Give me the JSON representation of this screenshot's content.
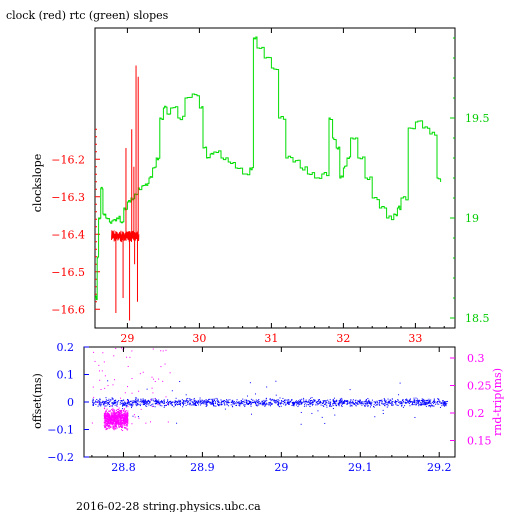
{
  "chart_data": [
    {
      "type": "line",
      "title": "clock (red) rtc (green) slopes",
      "xlabel": "",
      "ylabel": "clockslope",
      "y2label": "",
      "xlim": [
        28.55,
        33.55
      ],
      "ylim": [
        -16.65,
        -15.85
      ],
      "y2lim": [
        18.45,
        19.95
      ],
      "x_ticks": [
        29,
        30,
        31,
        32,
        33
      ],
      "y_ticks": [
        -16.6,
        -16.5,
        -16.4,
        -16.3,
        -16.2
      ],
      "y2_ticks": [
        18.5,
        19,
        19.5
      ],
      "series": [
        {
          "name": "clock",
          "axis": "left",
          "color": "#ff0000",
          "x": [
            28.78,
            28.8,
            28.82,
            28.84,
            28.86,
            28.88,
            28.9,
            28.92,
            28.94,
            28.96,
            28.98,
            29.0,
            29.02,
            29.04,
            29.06,
            29.08,
            29.1,
            29.12,
            29.14,
            29.16
          ],
          "y": [
            -16.41,
            -16.39,
            -16.42,
            -16.4,
            -16.38,
            -16.41,
            -16.43,
            -16.39,
            -16.4,
            -16.42,
            -16.38,
            -16.41,
            -16.4,
            -16.39,
            -16.42,
            -16.4,
            -16.41,
            -16.39,
            -16.4,
            -16.41
          ],
          "spikes_high": [
            28.98,
            29.06,
            29.09,
            29.12,
            29.15
          ],
          "spikes_low": [
            28.84,
            28.94,
            29.03,
            29.1,
            29.14
          ]
        },
        {
          "name": "rtc",
          "axis": "right",
          "color": "#00dd00",
          "x": [
            28.55,
            28.58,
            28.6,
            28.63,
            28.66,
            28.7,
            28.75,
            28.8,
            28.85,
            28.9,
            28.95,
            29.0,
            29.05,
            29.1,
            29.15,
            29.2,
            29.25,
            29.3,
            29.35,
            29.4,
            29.45,
            29.5,
            29.55,
            29.6,
            29.7,
            29.8,
            29.9,
            30.0,
            30.05,
            30.1,
            30.15,
            30.2,
            30.3,
            30.4,
            30.5,
            30.6,
            30.7,
            30.75,
            30.8,
            30.9,
            31.0,
            31.1,
            31.2,
            31.3,
            31.4,
            31.5,
            31.6,
            31.7,
            31.8,
            31.85,
            31.9,
            31.95,
            32.0,
            32.05,
            32.1,
            32.2,
            32.3,
            32.4,
            32.5,
            32.6,
            32.7,
            32.75,
            32.8,
            32.9,
            33.0,
            33.1,
            33.2,
            33.3,
            33.35
          ],
          "y": [
            18.6,
            18.8,
            19.0,
            19.15,
            19.02,
            19.0,
            18.98,
            18.99,
            19.0,
            18.98,
            19.05,
            19.08,
            19.1,
            19.12,
            19.15,
            19.16,
            19.17,
            19.2,
            19.25,
            19.3,
            19.5,
            19.55,
            19.52,
            19.55,
            19.5,
            19.6,
            19.62,
            19.55,
            19.35,
            19.3,
            19.32,
            19.33,
            19.3,
            19.28,
            19.25,
            19.22,
            19.25,
            19.9,
            19.85,
            19.8,
            19.75,
            19.5,
            19.3,
            19.28,
            19.25,
            19.22,
            19.2,
            19.22,
            19.5,
            19.4,
            19.35,
            19.2,
            19.25,
            19.3,
            19.4,
            19.3,
            19.2,
            19.1,
            19.05,
            19.0,
            19.02,
            19.05,
            19.1,
            19.45,
            19.48,
            19.45,
            19.42,
            19.2,
            19.18
          ]
        }
      ]
    },
    {
      "type": "scatter",
      "title": "",
      "xlabel": "",
      "ylabel": "offset(ms)",
      "y2label": "rnd-trip(ms)",
      "xlim": [
        28.75,
        29.22
      ],
      "ylim": [
        -0.2,
        0.2
      ],
      "y2lim": [
        0.12,
        0.32
      ],
      "x_ticks": [
        28.8,
        28.9,
        29,
        29.1,
        29.2
      ],
      "x_tick_labels": [
        "28.8",
        "28.9",
        "29",
        "29.1",
        "29.2"
      ],
      "y_ticks": [
        -0.2,
        -0.1,
        0,
        0.1,
        0.2
      ],
      "y2_ticks": [
        0.15,
        0.2,
        0.25,
        0.3
      ],
      "series": [
        {
          "name": "offset",
          "axis": "left",
          "color": "#0000ff",
          "x_range": [
            28.76,
            29.21
          ],
          "center": 0.0,
          "spread": 0.02,
          "count": 1500
        },
        {
          "name": "rnd-trip",
          "axis": "right",
          "color": "#ff00ff",
          "x_range": [
            28.775,
            28.805
          ],
          "center": 0.19,
          "spread": 0.025,
          "count": 900,
          "stray_x_range": [
            28.76,
            28.86
          ],
          "stray_y_range": [
            0.18,
            0.32
          ],
          "stray_count": 70
        }
      ]
    }
  ],
  "footer": "2016-02-28 string.physics.ubc.ca"
}
